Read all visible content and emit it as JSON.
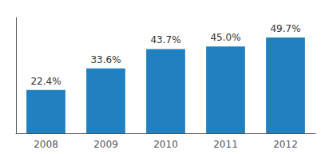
{
  "chart_data": {
    "type": "bar",
    "categories": [
      "2008",
      "2009",
      "2010",
      "2011",
      "2012"
    ],
    "values": [
      22.4,
      33.6,
      43.7,
      45.0,
      49.7
    ],
    "value_labels": [
      "22.4%",
      "33.6%",
      "43.7%",
      "45.0%",
      "49.7%"
    ],
    "color": "#2080c0",
    "ylim": [
      0,
      60
    ],
    "grid": false,
    "data_labels": true,
    "tick_labels": "x"
  }
}
